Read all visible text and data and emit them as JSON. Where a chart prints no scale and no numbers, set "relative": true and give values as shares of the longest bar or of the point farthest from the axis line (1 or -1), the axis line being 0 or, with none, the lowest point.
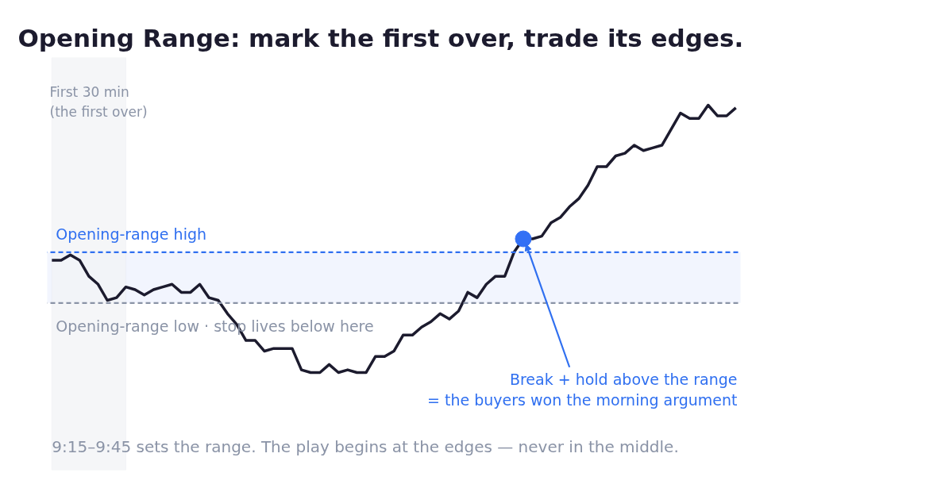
{
  "chart_data": {
    "type": "line",
    "relative": true,
    "title": "Opening Range: mark the first over, trade its edges.",
    "categories": [
      null,
      null,
      null,
      null,
      null,
      null,
      null,
      null,
      null,
      null,
      null,
      null,
      null,
      null,
      null,
      null,
      null,
      null,
      null,
      null,
      null,
      null,
      null,
      null,
      null,
      null,
      null,
      null,
      null,
      null,
      null,
      null,
      null,
      null,
      null,
      null,
      null,
      null,
      null,
      null,
      null,
      null,
      null,
      null,
      null,
      null,
      null,
      null,
      null,
      null,
      null,
      null,
      null,
      null,
      null,
      null,
      null,
      null,
      null,
      null,
      null,
      null,
      null,
      null,
      null,
      null,
      null,
      null,
      null,
      null,
      null,
      null,
      null,
      null,
      null
    ],
    "series": [
      {
        "color": "#1c1b2e",
        "values": [
          0.42,
          0.42,
          0.44,
          0.42,
          0.36,
          0.33,
          0.27,
          0.28,
          0.32,
          0.31,
          0.29,
          0.31,
          0.32,
          0.33,
          0.3,
          0.3,
          0.33,
          0.28,
          0.27,
          0.22,
          0.18,
          0.12,
          0.12,
          0.08,
          0.09,
          0.09,
          0.09,
          0.01,
          0,
          0,
          0.03,
          0,
          0.01,
          0,
          0,
          0.06,
          0.06,
          0.08,
          0.14,
          0.14,
          0.17,
          0.19,
          0.22,
          0.2,
          0.23,
          0.3,
          0.28,
          0.33,
          0.36,
          0.36,
          0.45,
          0.5,
          0.5,
          0.51,
          0.56,
          0.58,
          0.62,
          0.65,
          0.7,
          0.77,
          0.77,
          0.81,
          0.82,
          0.85,
          0.83,
          0.84,
          0.85,
          0.91,
          0.97,
          0.95,
          0.95,
          1,
          0.96,
          0.96,
          0.99
        ]
      }
    ],
    "ref_lines": [
      {
        "axis": "y",
        "value": 0.45,
        "label": "Opening-range high",
        "color": "#2f6ff0",
        "line_style": "dashed"
      },
      {
        "axis": "y",
        "value": 0.26,
        "label": "Opening-range low  ·  stop lives below here",
        "color": "#8a93a6",
        "line_style": "dashed"
      }
    ],
    "bands": [
      {
        "axis": "y",
        "from": 0.26,
        "to": 0.45,
        "color": "#eef2fd"
      }
    ],
    "annotations": [
      "First 30 min\n(the first over)",
      "Break + hold above the range\n= the buyers won the morning argument",
      "9:15–9:45 sets the range. The play begins at the edges — never in the middle."
    ],
    "marker": "none",
    "line_style": "solid",
    "grid": false,
    "tick_labels": false
  }
}
